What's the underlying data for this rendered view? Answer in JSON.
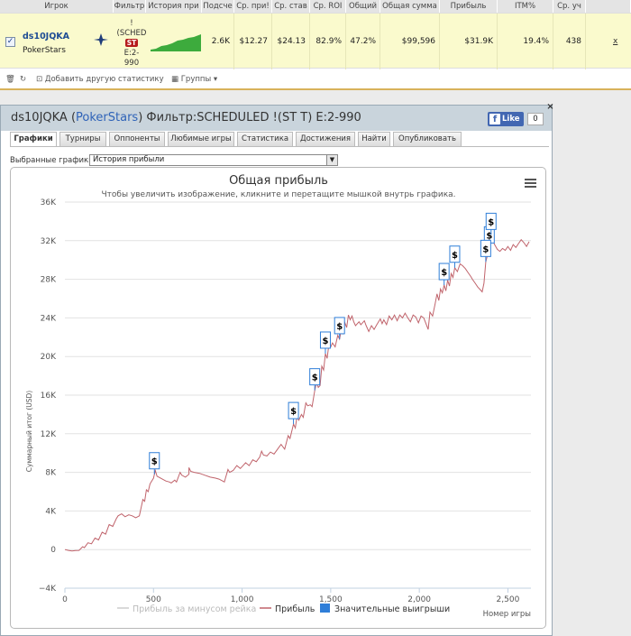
{
  "stats_table": {
    "headers": [
      "Игрок",
      "Фильтр",
      "История при",
      "Подсче",
      "Ср. при!",
      "Ср. став",
      "Ср. ROI",
      "Общий",
      "Общая сумма",
      "Прибыль",
      "ITM%",
      "Ср. уч"
    ],
    "player": {
      "name": "ds10JQKA",
      "site": "PokerStars",
      "checked": "✓",
      "filter_line1": "!",
      "filter_line2": "(SCHED",
      "filter_badge": "ST",
      "filter_line3": "E:2-",
      "filter_line4": "990",
      "count": "2.6K",
      "avg_profit": "$12.27",
      "avg_stake": "$24.13",
      "avg_roi": "82.9%",
      "total_roi": "47.2%",
      "total_sum": "$99,596",
      "profit": "$31.9K",
      "itm": "19.4%",
      "avg_players": "438",
      "remove": "x"
    },
    "toolbar": {
      "add_stats": "Добавить другую статистику",
      "groups": "Группы"
    }
  },
  "window": {
    "title_player": "ds10JQKA (",
    "title_site": "PokerStars",
    "title_filter": ") Фильтр:SCHEDULED !(ST T) E:2-990",
    "like_label": "Like",
    "like_count": "0",
    "close": "×",
    "tabs": [
      "Графики",
      "Турниры",
      "Оппоненты",
      "Любимые игры",
      "Статистика",
      "Достижения",
      "Найти",
      "Опубликовать"
    ],
    "chart_select_label": "Выбранные графики:",
    "chart_select_value": "История прибыли"
  },
  "colors": {
    "profit_line": "#c0636b",
    "rake_line": "#cccccc",
    "big_win": "#2f7ed8",
    "accent_blue": "#2f63b8"
  },
  "chart_data": {
    "type": "line",
    "title": "Общая прибыль",
    "subtitle": "Чтобы увеличить изображение, кликните и перетащите мышкой внутрь графика.",
    "xlabel": "Номер игры",
    "ylabel": "Суммарный итог (USD)",
    "xlim": [
      0,
      2630
    ],
    "ylim": [
      -4000,
      36000
    ],
    "x_ticks": [
      0,
      500,
      1000,
      1500,
      2000,
      2500
    ],
    "x_tick_labels": [
      "0",
      "500",
      "1,000",
      "1,500",
      "2,000",
      "2,500"
    ],
    "y_ticks": [
      -4000,
      0,
      4000,
      8000,
      12000,
      16000,
      20000,
      24000,
      28000,
      32000,
      36000
    ],
    "y_tick_labels": [
      "−4K",
      "0",
      "4K",
      "8K",
      "12K",
      "16K",
      "20K",
      "24K",
      "28K",
      "32K",
      "36K"
    ],
    "grid": true,
    "legend_position": "bottom",
    "series": [
      {
        "name": "Прибыль за минусом рейка",
        "visible": false,
        "points": []
      },
      {
        "name": "Прибыль",
        "points": [
          [
            0,
            0
          ],
          [
            20,
            -80
          ],
          [
            40,
            -150
          ],
          [
            60,
            -100
          ],
          [
            80,
            -80
          ],
          [
            100,
            300
          ],
          [
            110,
            200
          ],
          [
            130,
            700
          ],
          [
            150,
            600
          ],
          [
            170,
            1200
          ],
          [
            190,
            1000
          ],
          [
            210,
            1800
          ],
          [
            230,
            1600
          ],
          [
            250,
            2600
          ],
          [
            270,
            2400
          ],
          [
            290,
            3200
          ],
          [
            300,
            3500
          ],
          [
            320,
            3700
          ],
          [
            340,
            3400
          ],
          [
            360,
            3600
          ],
          [
            380,
            3500
          ],
          [
            400,
            3300
          ],
          [
            420,
            3500
          ],
          [
            440,
            5200
          ],
          [
            450,
            5000
          ],
          [
            460,
            6200
          ],
          [
            470,
            6000
          ],
          [
            480,
            6800
          ],
          [
            500,
            7400
          ],
          [
            505,
            7800
          ],
          [
            510,
            8200
          ],
          [
            520,
            7600
          ],
          [
            530,
            7500
          ],
          [
            550,
            7300
          ],
          [
            570,
            7100
          ],
          [
            590,
            7000
          ],
          [
            600,
            6900
          ],
          [
            620,
            7200
          ],
          [
            630,
            7000
          ],
          [
            650,
            8000
          ],
          [
            660,
            7700
          ],
          [
            680,
            7500
          ],
          [
            700,
            7800
          ],
          [
            700,
            8500
          ],
          [
            710,
            8100
          ],
          [
            730,
            8000
          ],
          [
            760,
            7900
          ],
          [
            790,
            7700
          ],
          [
            820,
            7500
          ],
          [
            850,
            7400
          ],
          [
            870,
            7300
          ],
          [
            890,
            7100
          ],
          [
            900,
            7000
          ],
          [
            920,
            8300
          ],
          [
            930,
            8000
          ],
          [
            950,
            8200
          ],
          [
            970,
            8700
          ],
          [
            990,
            8400
          ],
          [
            1000,
            8600
          ],
          [
            1020,
            9000
          ],
          [
            1040,
            8700
          ],
          [
            1060,
            9300
          ],
          [
            1080,
            9100
          ],
          [
            1100,
            9600
          ],
          [
            1110,
            10200
          ],
          [
            1120,
            9800
          ],
          [
            1140,
            9700
          ],
          [
            1160,
            10100
          ],
          [
            1180,
            9900
          ],
          [
            1200,
            10400
          ],
          [
            1220,
            10900
          ],
          [
            1240,
            10400
          ],
          [
            1260,
            11800
          ],
          [
            1270,
            11500
          ],
          [
            1290,
            13000
          ],
          [
            1300,
            12600
          ],
          [
            1310,
            13800
          ],
          [
            1320,
            13400
          ],
          [
            1335,
            14000
          ],
          [
            1345,
            13700
          ],
          [
            1360,
            15200
          ],
          [
            1370,
            14900
          ],
          [
            1385,
            15000
          ],
          [
            1395,
            14800
          ],
          [
            1410,
            16500
          ],
          [
            1420,
            17300
          ],
          [
            1430,
            16800
          ],
          [
            1440,
            17000
          ],
          [
            1450,
            19000
          ],
          [
            1460,
            18600
          ],
          [
            1470,
            20300
          ],
          [
            1480,
            19800
          ],
          [
            1490,
            21300
          ],
          [
            1500,
            21000
          ],
          [
            1510,
            21400
          ],
          [
            1525,
            21000
          ],
          [
            1540,
            22200
          ],
          [
            1550,
            21800
          ],
          [
            1560,
            22800
          ],
          [
            1570,
            22400
          ],
          [
            1580,
            23500
          ],
          [
            1590,
            23000
          ],
          [
            1600,
            24300
          ],
          [
            1610,
            23800
          ],
          [
            1620,
            24200
          ],
          [
            1630,
            23600
          ],
          [
            1640,
            23200
          ],
          [
            1660,
            23600
          ],
          [
            1670,
            23300
          ],
          [
            1690,
            23700
          ],
          [
            1700,
            23200
          ],
          [
            1715,
            22600
          ],
          [
            1730,
            23200
          ],
          [
            1745,
            22800
          ],
          [
            1760,
            23300
          ],
          [
            1780,
            23900
          ],
          [
            1790,
            23400
          ],
          [
            1800,
            23800
          ],
          [
            1815,
            23300
          ],
          [
            1830,
            24200
          ],
          [
            1845,
            23800
          ],
          [
            1860,
            24300
          ],
          [
            1875,
            23700
          ],
          [
            1890,
            24300
          ],
          [
            1905,
            24000
          ],
          [
            1920,
            24500
          ],
          [
            1935,
            24000
          ],
          [
            1950,
            23600
          ],
          [
            1965,
            24300
          ],
          [
            1980,
            24100
          ],
          [
            1995,
            23500
          ],
          [
            2010,
            24200
          ],
          [
            2025,
            24000
          ],
          [
            2040,
            23300
          ],
          [
            2050,
            22800
          ],
          [
            2060,
            24600
          ],
          [
            2075,
            24200
          ],
          [
            2090,
            25500
          ],
          [
            2100,
            26500
          ],
          [
            2110,
            25800
          ],
          [
            2120,
            27000
          ],
          [
            2130,
            26600
          ],
          [
            2140,
            27400
          ],
          [
            2150,
            26800
          ],
          [
            2160,
            27900
          ],
          [
            2170,
            27300
          ],
          [
            2180,
            28600
          ],
          [
            2190,
            28200
          ],
          [
            2200,
            29200
          ],
          [
            2215,
            28800
          ],
          [
            2230,
            29600
          ],
          [
            2245,
            29400
          ],
          [
            2260,
            29100
          ],
          [
            2275,
            28700
          ],
          [
            2290,
            28300
          ],
          [
            2300,
            28000
          ],
          [
            2315,
            27600
          ],
          [
            2330,
            27200
          ],
          [
            2345,
            26900
          ],
          [
            2355,
            26700
          ],
          [
            2365,
            27600
          ],
          [
            2375,
            29800
          ],
          [
            2385,
            30500
          ],
          [
            2395,
            31200
          ],
          [
            2405,
            32600
          ],
          [
            2415,
            32000
          ],
          [
            2425,
            31600
          ],
          [
            2440,
            31100
          ],
          [
            2455,
            30900
          ],
          [
            2470,
            31200
          ],
          [
            2485,
            31000
          ],
          [
            2500,
            31400
          ],
          [
            2515,
            31000
          ],
          [
            2530,
            31600
          ],
          [
            2545,
            31300
          ],
          [
            2560,
            31700
          ],
          [
            2575,
            32100
          ],
          [
            2590,
            31800
          ],
          [
            2605,
            31400
          ],
          [
            2620,
            31900
          ]
        ]
      },
      {
        "name": "Значительные выигрыши",
        "flag_label": "$",
        "points": [
          [
            505,
            7800
          ],
          [
            1290,
            13000
          ],
          [
            1410,
            16500
          ],
          [
            1470,
            20300
          ],
          [
            1550,
            21800
          ],
          [
            2140,
            27400
          ],
          [
            2200,
            29200
          ],
          [
            2395,
            31200
          ],
          [
            2405,
            32600
          ],
          [
            2375,
            29800
          ]
        ]
      }
    ]
  }
}
